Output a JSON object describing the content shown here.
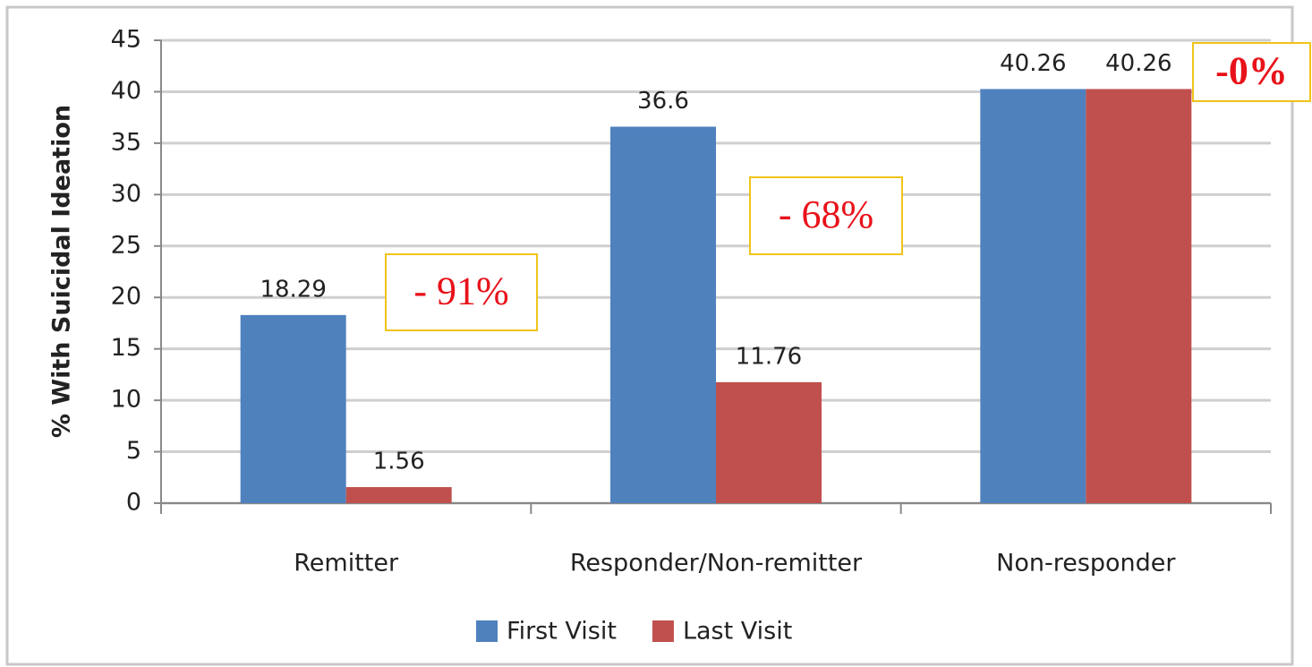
{
  "chart_data": {
    "type": "bar",
    "y_label": "% With Suicidal Ideation",
    "categories": [
      "Remitter",
      "Responder/Non-remitter",
      "Non-responder"
    ],
    "series": [
      {
        "name": "First Visit",
        "color": "#4f81bd",
        "values": [
          18.29,
          36.6,
          40.26
        ]
      },
      {
        "name": "Last Visit",
        "color": "#c0504d",
        "values": [
          1.56,
          11.76,
          40.26
        ]
      }
    ],
    "annotations": [
      "- 91%",
      "- 68%",
      "-0%"
    ],
    "ylim": [
      0,
      45
    ],
    "yticks": [
      0,
      5,
      10,
      15,
      20,
      25,
      30,
      35,
      40,
      45
    ],
    "grid": true,
    "legend": "bottom"
  }
}
